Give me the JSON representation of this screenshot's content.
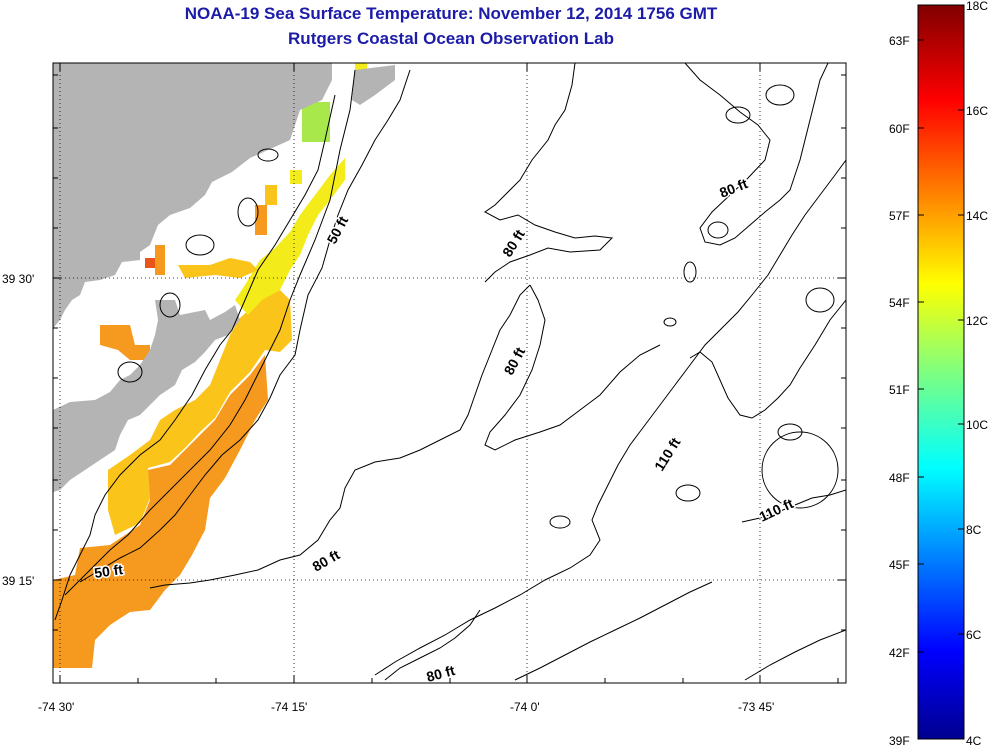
{
  "title": "NOAA-19 Sea Surface Temperature:  November 12, 2014 1756 GMT",
  "subtitle": "Rutgers Coastal Ocean Observation Lab",
  "x_ticks": [
    "-74 30'",
    "-74 15'",
    "-74 0'",
    "-73 45'"
  ],
  "y_ticks": [
    "39 30'",
    "39 15'"
  ],
  "contour_labels": [
    "50 ft",
    "50 ft",
    "80 ft",
    "80 ft",
    "80 ft",
    "80 ft",
    "80 ft",
    "110 ft",
    "110 ft"
  ],
  "colorbar": {
    "celsius_labels": [
      "18C",
      "16C",
      "14C",
      "12C",
      "10C",
      "8C",
      "6C",
      "4C"
    ],
    "fahrenheit_labels": [
      "63F",
      "60F",
      "57F",
      "54F",
      "51F",
      "48F",
      "45F",
      "42F",
      "39F"
    ],
    "range_c": [
      4,
      18
    ]
  },
  "colors": {
    "title": "#1c1ca8",
    "land": "#b4b4b4",
    "sst_warm": "#f59a1e",
    "sst_mid": "#fbc41a",
    "sst_cool": "#f3ec1a",
    "sst_green": "#a8e84a"
  }
}
